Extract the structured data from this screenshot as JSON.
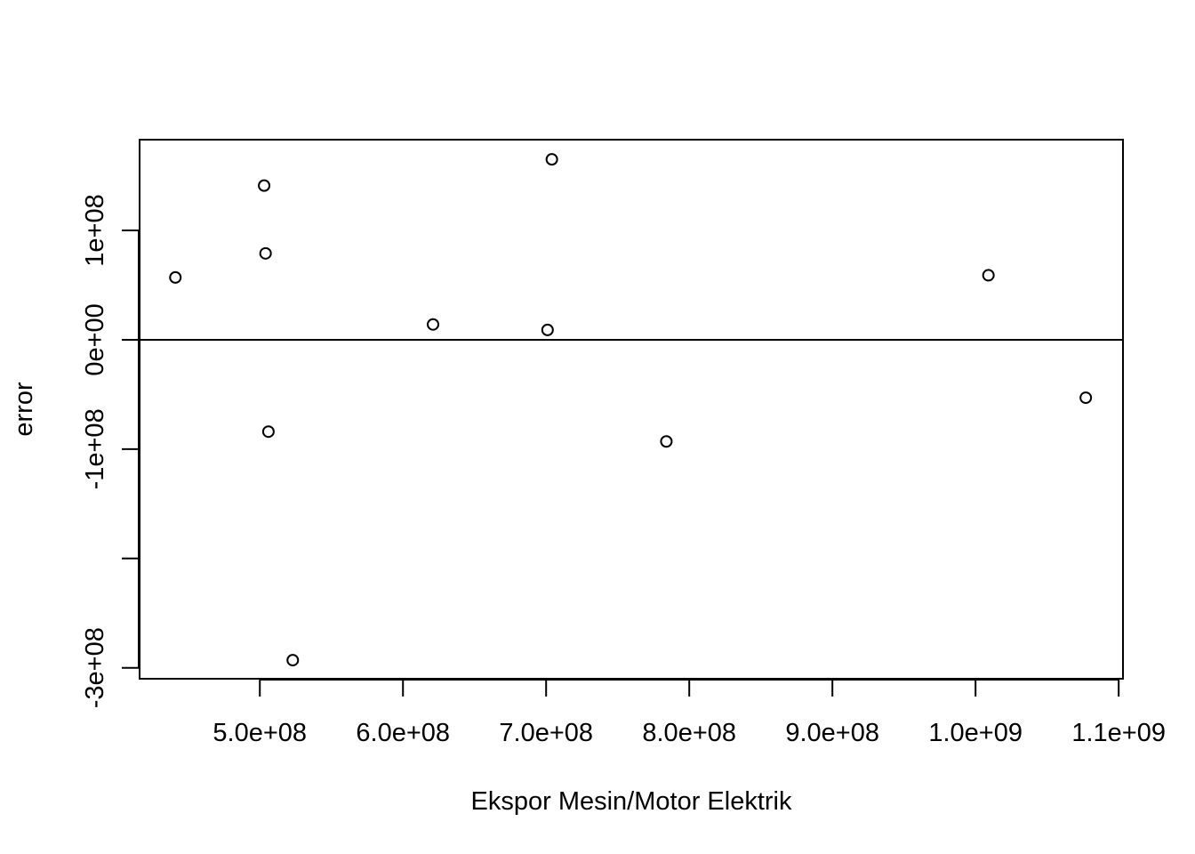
{
  "chart_data": {
    "type": "scatter",
    "title": "",
    "xlabel": "Ekspor Mesin/Motor Elektrik",
    "ylabel": "error",
    "xlim": [
      416000000,
      1103000000
    ],
    "ylim": [
      -310000000,
      183000000
    ],
    "x_ticks": [
      {
        "value": 500000000,
        "label": "5.0e+08"
      },
      {
        "value": 600000000,
        "label": "6.0e+08"
      },
      {
        "value": 700000000,
        "label": "7.0e+08"
      },
      {
        "value": 800000000,
        "label": "8.0e+08"
      },
      {
        "value": 900000000,
        "label": "9.0e+08"
      },
      {
        "value": 1000000000,
        "label": "1.0e+09"
      },
      {
        "value": 1100000000,
        "label": "1.1e+09"
      }
    ],
    "y_ticks": [
      {
        "value": -300000000,
        "label": "-3e+08"
      },
      {
        "value": -200000000,
        "label": ""
      },
      {
        "value": -100000000,
        "label": "-1e+08"
      },
      {
        "value": 0,
        "label": "0e+00"
      },
      {
        "value": 100000000,
        "label": "1e+08"
      }
    ],
    "reference_line_y": 0,
    "grid": false,
    "legend": "none",
    "points": [
      {
        "x": 441000000,
        "y": 57000000
      },
      {
        "x": 503000000,
        "y": 141000000
      },
      {
        "x": 504000000,
        "y": 79000000
      },
      {
        "x": 506000000,
        "y": -84000000
      },
      {
        "x": 523000000,
        "y": -293000000
      },
      {
        "x": 621000000,
        "y": 14000000
      },
      {
        "x": 701000000,
        "y": 9000000
      },
      {
        "x": 704000000,
        "y": 165000000
      },
      {
        "x": 784000000,
        "y": -93000000
      },
      {
        "x": 1009000000,
        "y": 59000000
      },
      {
        "x": 1077000000,
        "y": -53000000
      }
    ],
    "marker_color": "#000000",
    "line_color": "#000000"
  }
}
